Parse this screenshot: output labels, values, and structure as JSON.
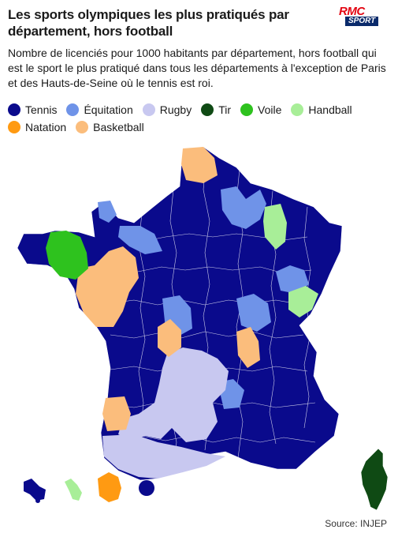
{
  "title": "Les sports olympiques les plus pratiqués par département, hors football",
  "subtitle": "Nombre de licenciés pour 1000 habitants par département, hors football qui est le sport le plus pratiqué dans tous les départements à l'exception de Paris et des Hauts-de-Seine où le tennis est roi.",
  "logo": {
    "brand": "RMC",
    "sub": "SPORT",
    "brand_color": "#e30613"
  },
  "legend": [
    {
      "label": "Tennis",
      "color": "#0a0a8c"
    },
    {
      "label": "Équitation",
      "color": "#6f93e8"
    },
    {
      "label": "Rugby",
      "color": "#c8c8f0"
    },
    {
      "label": "Tir",
      "color": "#0f4a14"
    },
    {
      "label": "Voile",
      "color": "#2ec21e"
    },
    {
      "label": "Handball",
      "color": "#a8ee98"
    },
    {
      "label": "Natation",
      "color": "#ff9a12"
    },
    {
      "label": "Basketball",
      "color": "#fbbd7c"
    }
  ],
  "source": "Source: INJEP"
}
